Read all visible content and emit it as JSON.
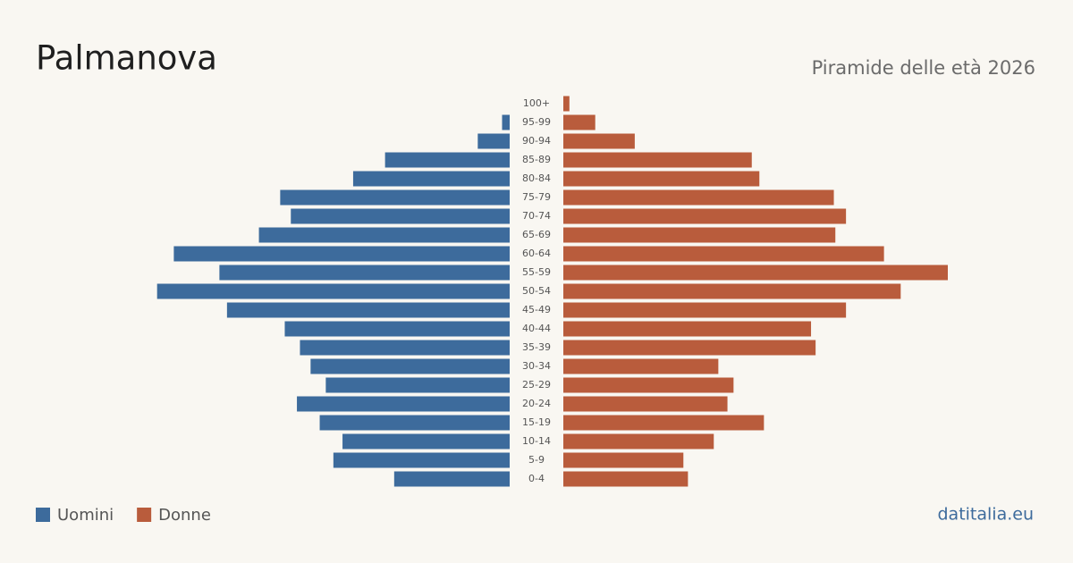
{
  "chart_data": {
    "type": "pyramid",
    "title": "Palmanova",
    "subtitle": "Piramide delle età 2026",
    "categories": [
      "100+",
      "95-99",
      "90-94",
      "85-89",
      "80-84",
      "75-79",
      "70-74",
      "65-69",
      "60-64",
      "55-59",
      "50-54",
      "45-49",
      "40-44",
      "35-39",
      "30-34",
      "25-29",
      "20-24",
      "15-19",
      "10-14",
      "5-9",
      "0-4"
    ],
    "series": [
      {
        "name": "Uomini",
        "color": "#3d6b9c",
        "values": [
          0,
          5,
          21,
          82,
          103,
          151,
          144,
          165,
          221,
          191,
          232,
          186,
          148,
          138,
          131,
          121,
          140,
          125,
          110,
          116,
          76
        ]
      },
      {
        "name": "Donne",
        "color": "#b95c3c",
        "values": [
          4,
          21,
          47,
          124,
          129,
          178,
          186,
          179,
          211,
          253,
          222,
          186,
          163,
          166,
          102,
          112,
          108,
          132,
          99,
          79,
          82
        ]
      }
    ],
    "source": "datitalia.eu"
  }
}
